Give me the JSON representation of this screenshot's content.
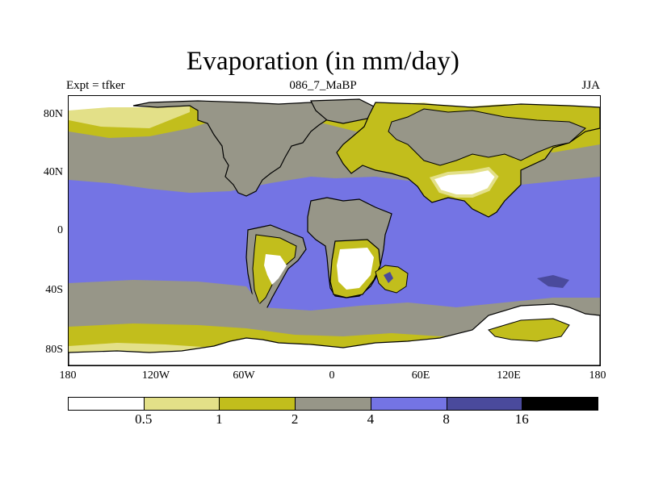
{
  "title": "Evaporation (in mm/day)",
  "subtitle_left": "Expt = tfker",
  "subtitle_center": "086_7_MaBP",
  "subtitle_right": "JJA",
  "map_data": {
    "projection": "cylindrical-equidistant",
    "lon_range": [
      -180,
      180
    ],
    "lat_range": [
      -90,
      90
    ],
    "lat_ticks": [
      "80N",
      "40N",
      "0",
      "40S",
      "80S"
    ],
    "lon_ticks": [
      "180",
      "120W",
      "60W",
      "0",
      "60E",
      "120E",
      "180"
    ],
    "colorbar": {
      "colors": [
        "#ffffff",
        "#e3e088",
        "#c2be1c",
        "#979688",
        "#7474e4",
        "#4a4a9c",
        "#000000"
      ],
      "labels": [
        "0.5",
        "1",
        "2",
        "4",
        "8",
        "16"
      ]
    }
  }
}
